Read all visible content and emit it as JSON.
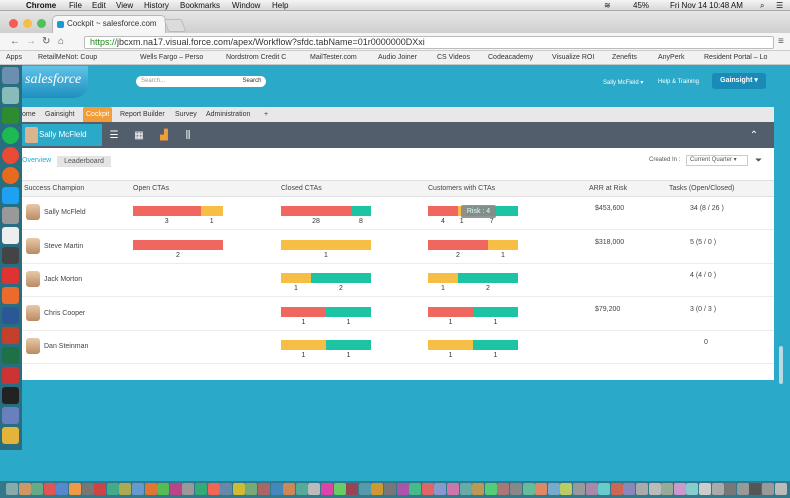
{
  "menubar": {
    "app": "Chrome",
    "items": [
      "File",
      "Edit",
      "View",
      "History",
      "Bookmarks",
      "Window",
      "Help"
    ],
    "battery": "45%",
    "clock": "Fri Nov 14  10:48 AM"
  },
  "browser": {
    "tab_title": "Cockpit ~ salesforce.com",
    "url_scheme": "https://",
    "url_rest": "jbcxm.na17.visual.force.com/apex/Workflow?sfdc.tabName=01r0000000DXxi",
    "bookmarks": [
      "Apps",
      "RetailMeNot: Coup",
      "Wells Fargo – Perso",
      "Nordstrom Credit C",
      "MailTester.com",
      "Audio Joiner",
      "CS Videos",
      "Codeacademy",
      "Visualize ROI",
      "Zenefits",
      "AnyPerk",
      "Resident Portal – Lo"
    ]
  },
  "sf": {
    "logo": "salesforce",
    "search_placeholder": "Search...",
    "search_button": "Search",
    "user": "Sally McFleld ▾",
    "help": "Help & Training",
    "app_button": "Gainsight ▾",
    "tabs": [
      "ome",
      "Gainsight",
      "Cockpit",
      "Report Builder",
      "Survey",
      "Administration",
      "+"
    ],
    "active_tab": "Cockpit"
  },
  "cockpit": {
    "user_name": "Sally McFleld",
    "overview_label": "Overview",
    "leaderboard_label": "Leaderboard",
    "created_in_label": "Created In :",
    "period": "Current Quarter ▾",
    "headers": [
      "Success Champion",
      "Open CTAs",
      "Closed CTAs",
      "Customers with CTAs",
      "ARR at Risk",
      "Tasks (Open/Closed)"
    ],
    "tooltip": "Risk : 4",
    "colors": {
      "red": "#f0675f",
      "yellow": "#f7be45",
      "teal": "#1dc4a4"
    },
    "rows": [
      {
        "name": "Sally McFleld",
        "arr": "$453,600",
        "tasks": "34 (8 / 26 )",
        "open": [
          {
            "c": "red",
            "v": 3
          },
          {
            "c": "yellow",
            "v": 1
          }
        ],
        "closed": [
          {
            "c": "red",
            "v": 28
          },
          {
            "c": "teal",
            "v": 8
          }
        ],
        "customers": [
          {
            "c": "red",
            "v": 4
          },
          {
            "c": "yellow",
            "v": 1
          },
          {
            "c": "teal",
            "v": 7
          }
        ]
      },
      {
        "name": "Steve Martin",
        "arr": "$318,000",
        "tasks": "5 (5 / 0 )",
        "open": [
          {
            "c": "red",
            "v": 2
          }
        ],
        "closed": [
          {
            "c": "yellow",
            "v": 1
          }
        ],
        "customers": [
          {
            "c": "red",
            "v": 2
          },
          {
            "c": "yellow",
            "v": 1
          }
        ]
      },
      {
        "name": "Jack Morton",
        "arr": "",
        "tasks": "4 (4 / 0 )",
        "open": [],
        "closed": [
          {
            "c": "yellow",
            "v": 1
          },
          {
            "c": "teal",
            "v": 2
          }
        ],
        "customers": [
          {
            "c": "yellow",
            "v": 1
          },
          {
            "c": "teal",
            "v": 2
          }
        ]
      },
      {
        "name": "Chris Cooper",
        "arr": "$79,200",
        "tasks": "3 (0 / 3 )",
        "open": [],
        "closed": [
          {
            "c": "red",
            "v": 1
          },
          {
            "c": "teal",
            "v": 1
          }
        ],
        "customers": [
          {
            "c": "red",
            "v": 1
          },
          {
            "c": "teal",
            "v": 1
          }
        ]
      },
      {
        "name": "Dan Steinman",
        "arr": "",
        "tasks": "0",
        "open": [],
        "closed": [
          {
            "c": "yellow",
            "v": 1
          },
          {
            "c": "teal",
            "v": 1
          }
        ],
        "customers": [
          {
            "c": "yellow",
            "v": 1
          },
          {
            "c": "teal",
            "v": 1
          }
        ]
      }
    ]
  }
}
